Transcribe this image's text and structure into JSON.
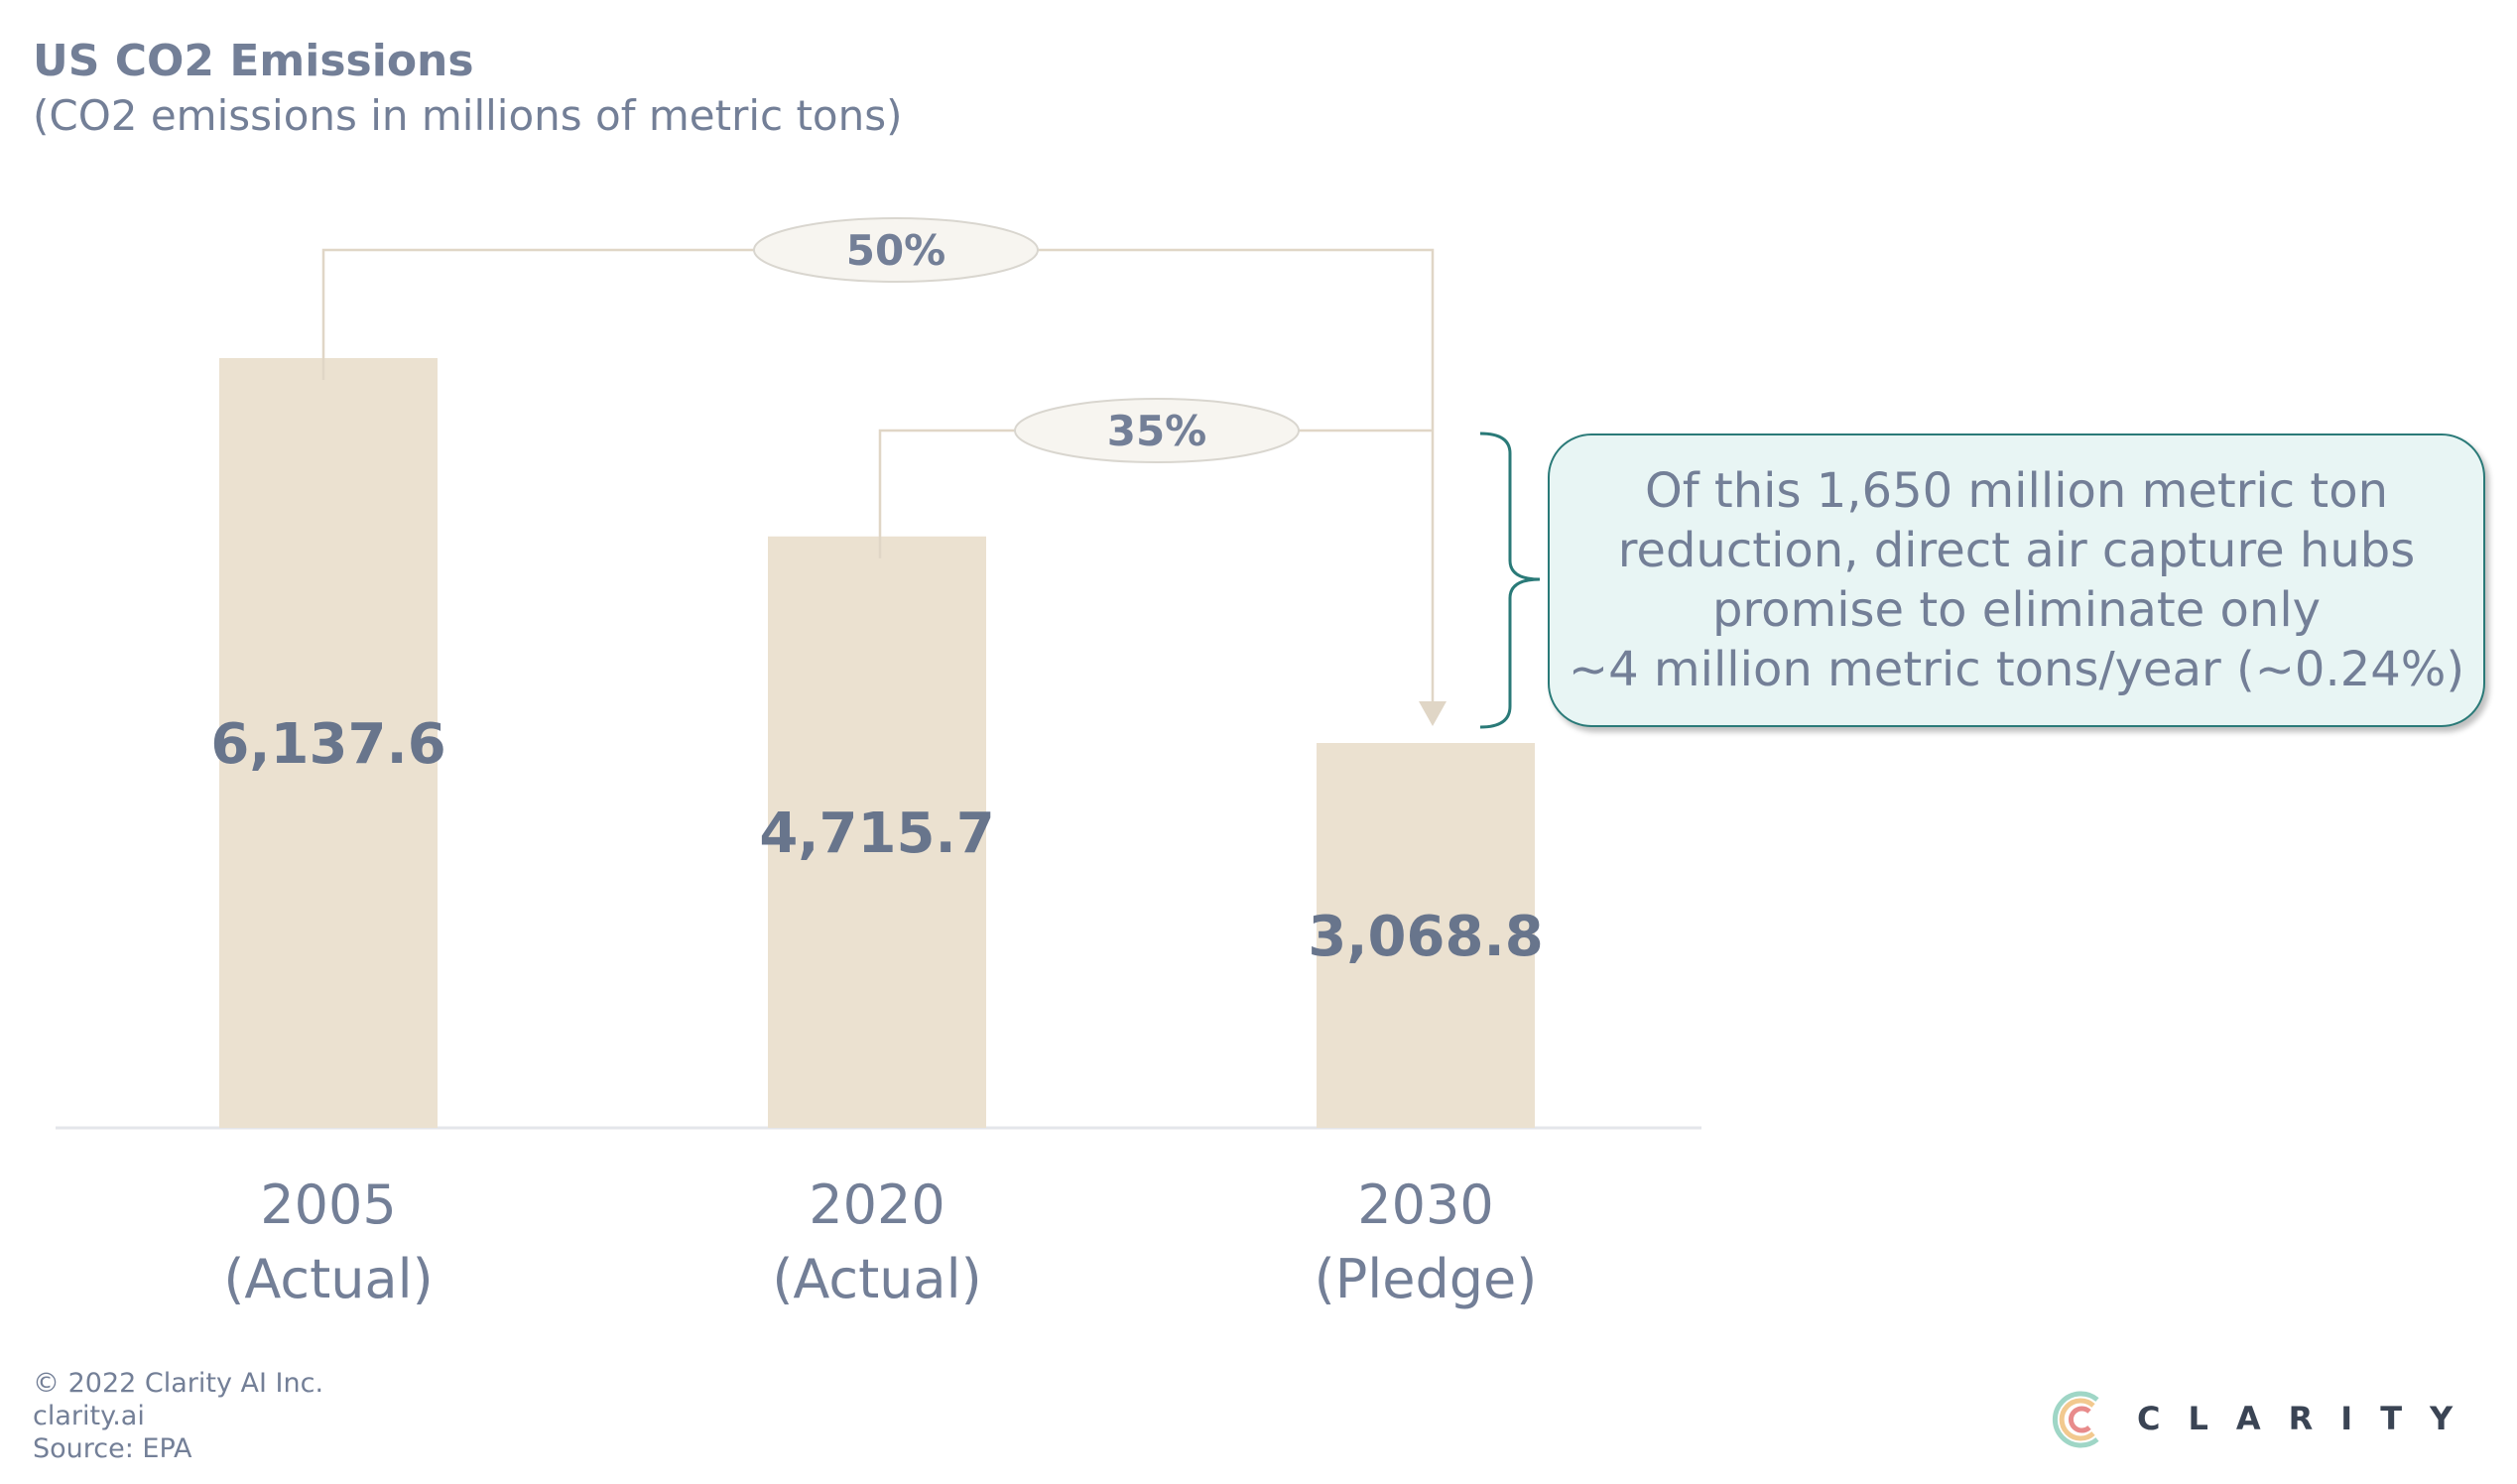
{
  "chart_data": {
    "type": "bar",
    "title": "US CO2 Emissions",
    "subtitle": "(CO2 emissions in millions of metric tons)",
    "categories": [
      {
        "line1": "2005",
        "line2": "(Actual)"
      },
      {
        "line1": "2020",
        "line2": "(Actual)"
      },
      {
        "line1": "2030",
        "line2": "(Pledge)"
      }
    ],
    "values": [
      6137.6,
      4715.7,
      3068.8
    ],
    "data_labels": [
      "6,137.6",
      "4,715.7",
      "3,068.8"
    ],
    "ylim": [
      0,
      6137.6
    ],
    "grid": false,
    "annotations": [
      {
        "label": "50%",
        "from": "2005",
        "to": "2030"
      },
      {
        "label": "35%",
        "from": "2020",
        "to": "2030"
      }
    ],
    "callout": [
      "Of this 1,650 million metric ton",
      "reduction, direct air capture hubs",
      "promise to eliminate only",
      "~4 million metric tons/year (~0.24%)"
    ],
    "colors": {
      "bar": "#ebe1d0",
      "text": "#737f97",
      "label": "#68758c",
      "connector": "#e0d6c6",
      "callout_fill": "#e8f5f4",
      "callout_border": "#2a7a78"
    }
  },
  "footer": {
    "copyright": "© 2022 Clarity AI Inc.",
    "site": "clarity.ai",
    "source": "Source: EPA"
  },
  "logo": {
    "text": "CLARITY AI"
  }
}
